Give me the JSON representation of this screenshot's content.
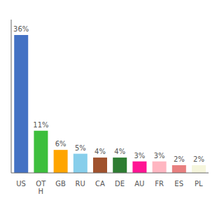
{
  "chart_data": {
    "type": "bar",
    "categories": [
      "US",
      "OT\nH",
      "GB",
      "RU",
      "CA",
      "DE",
      "AU",
      "FR",
      "ES",
      "PL"
    ],
    "values": [
      36,
      11,
      6,
      5,
      4,
      4,
      3,
      3,
      2,
      2
    ],
    "value_labels": [
      "36%",
      "11%",
      "6%",
      "5%",
      "4%",
      "4%",
      "3%",
      "3%",
      "2%",
      "2%"
    ],
    "data_labels": true,
    "colors": [
      "#4472C4",
      "#3DBF3D",
      "#FFA500",
      "#87CEEB",
      "#A0522D",
      "#2E7D32",
      "#FF1493",
      "#FFB6C1",
      "#E88080",
      "#F5F5DC"
    ],
    "ylim": [
      0,
      40
    ],
    "tick_labels": "x",
    "grid": false
  }
}
